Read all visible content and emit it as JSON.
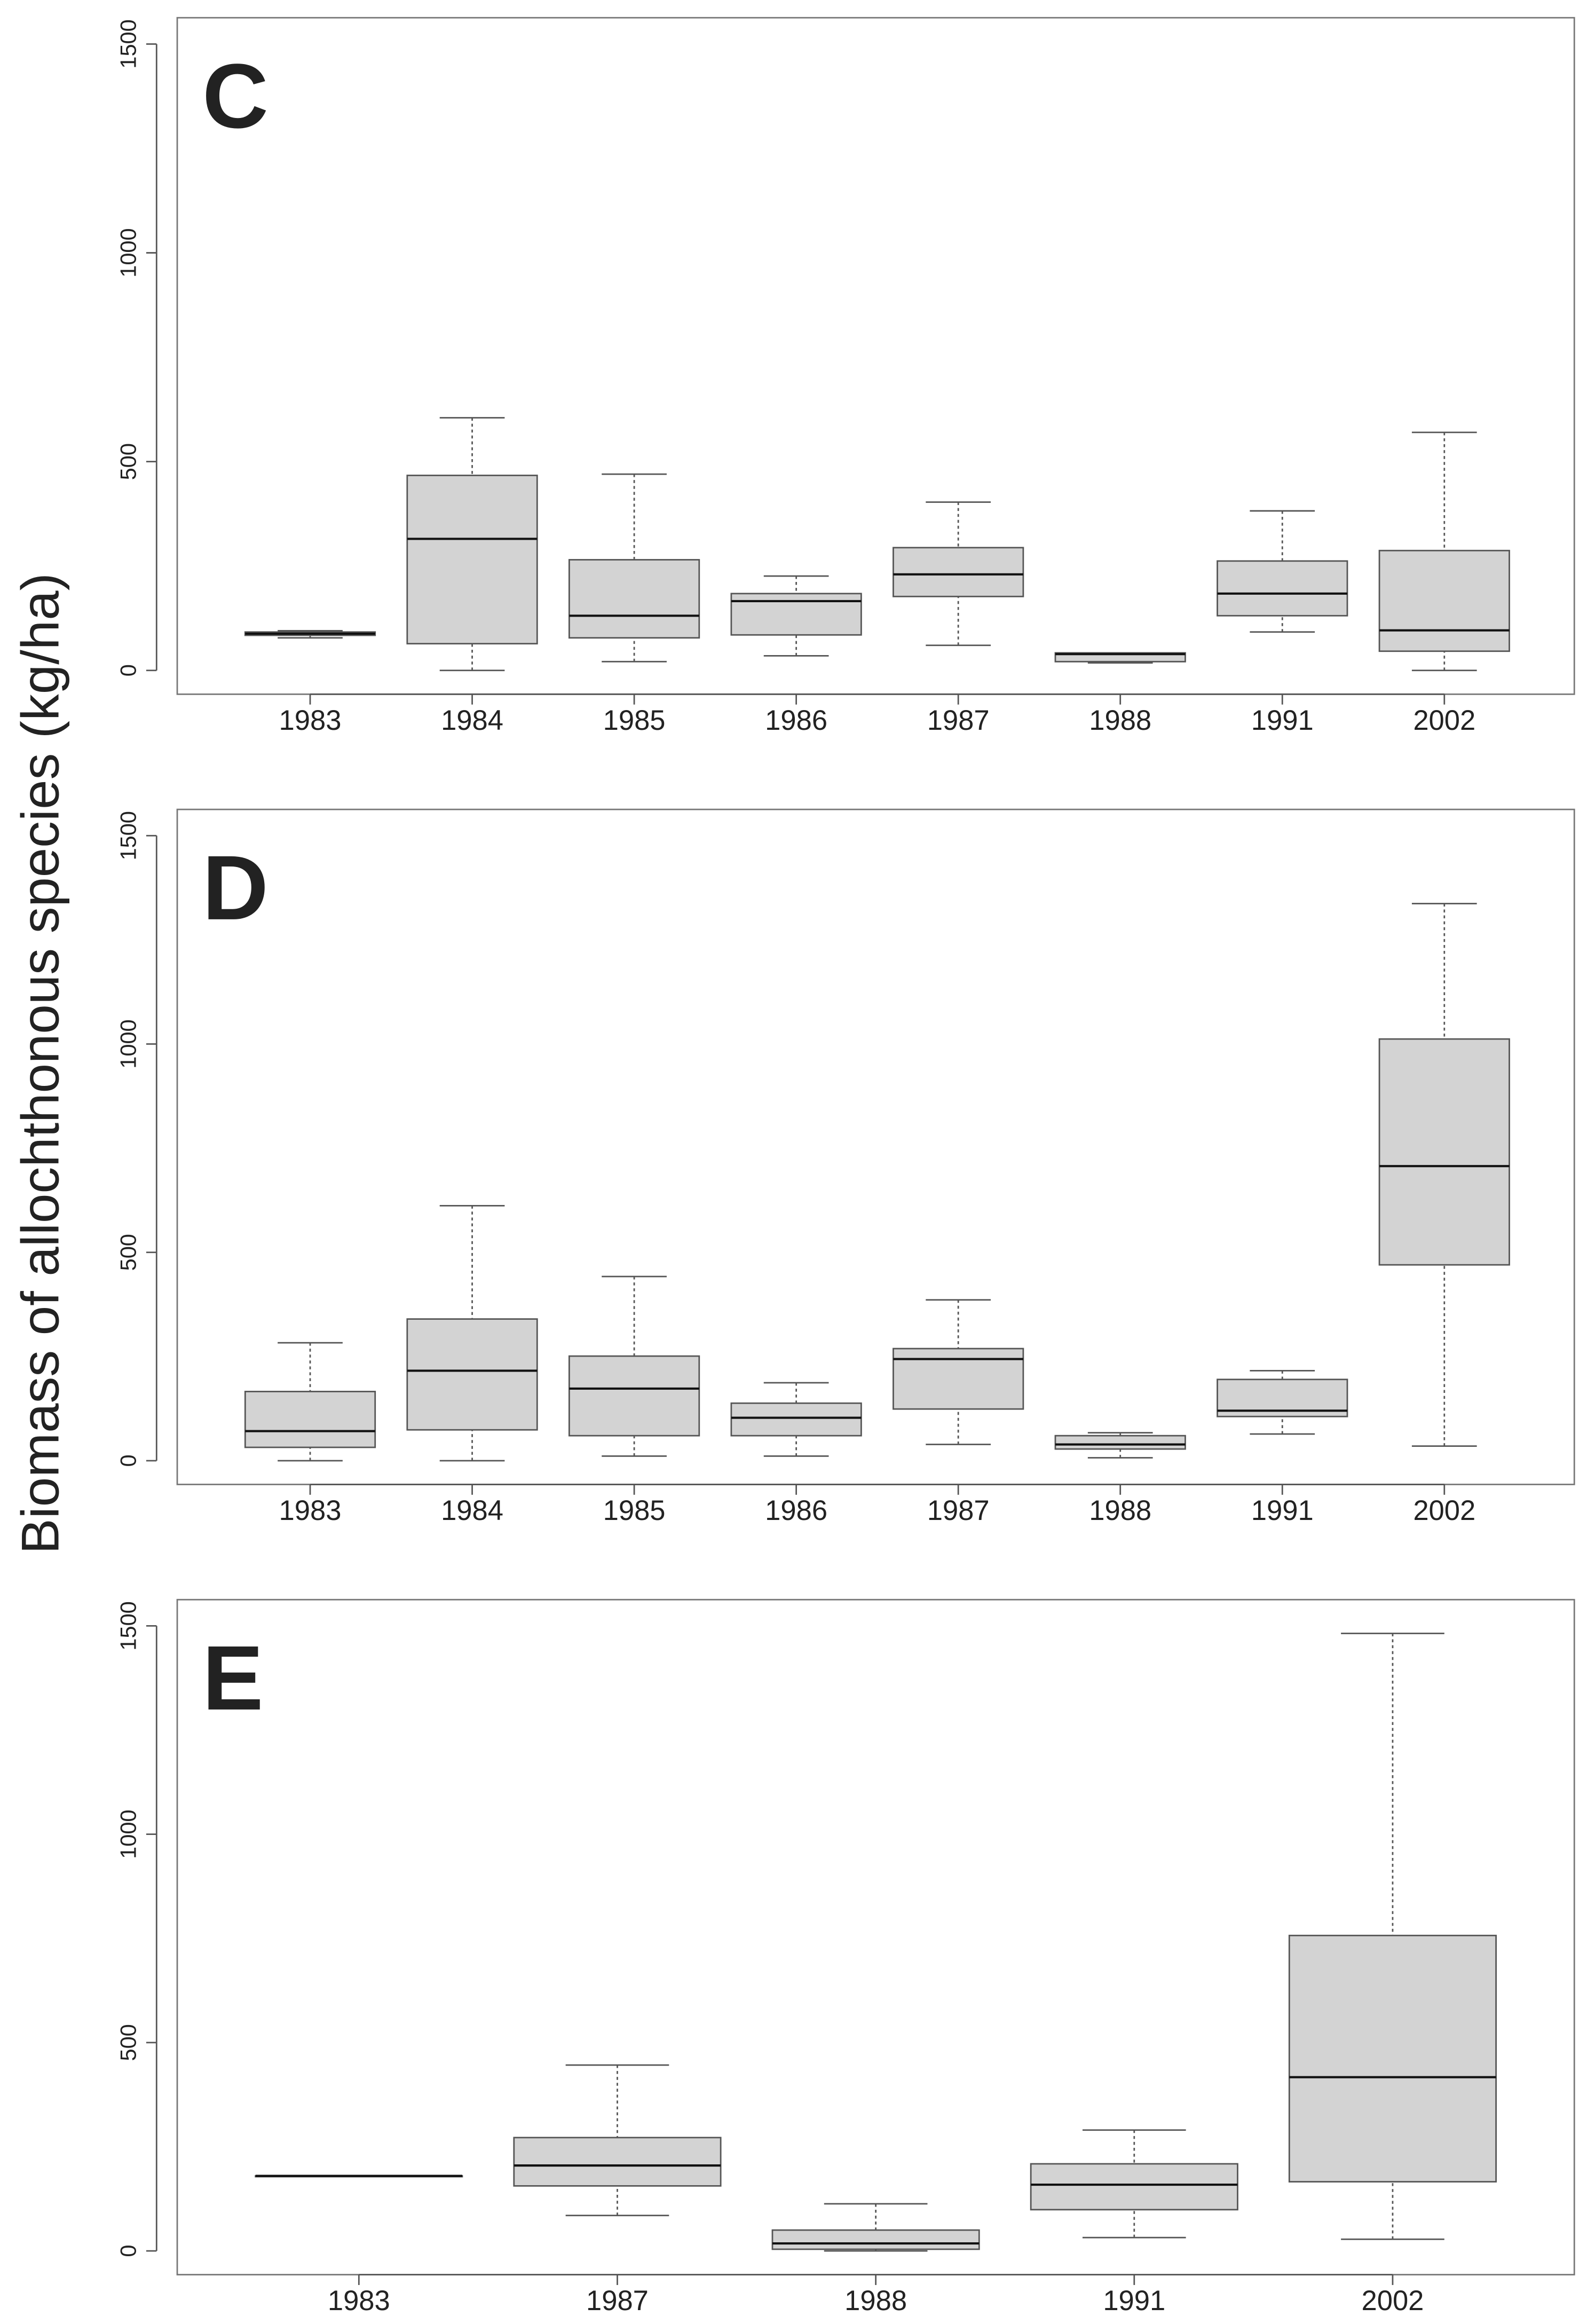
{
  "chart_data": [
    {
      "type": "box",
      "title": "C",
      "ylabel": "Biomass of allochthonous species (kg/ha)",
      "categories": [
        "1983",
        "1984",
        "1985",
        "1986",
        "1987",
        "1988",
        "1991",
        "2002"
      ],
      "min": [
        78,
        0,
        21,
        35,
        60,
        18,
        92,
        0
      ],
      "q1": [
        84,
        64,
        78,
        85,
        177,
        21,
        131,
        46
      ],
      "median": [
        88,
        315,
        131,
        166,
        230,
        39,
        184,
        96
      ],
      "q3": [
        92,
        467,
        265,
        184,
        294,
        42,
        262,
        287
      ],
      "max": [
        95,
        605,
        470,
        226,
        403,
        42,
        382,
        570
      ],
      "color": "#d3d3d3",
      "ylim": [
        -57,
        1563
      ],
      "yticks": [
        0,
        500,
        1000,
        1500
      ]
    },
    {
      "type": "box",
      "title": "D",
      "categories": [
        "1983",
        "1984",
        "1985",
        "1986",
        "1987",
        "1988",
        "1991",
        "2002"
      ],
      "min": [
        0,
        0,
        11,
        11,
        39,
        7,
        64,
        35
      ],
      "q1": [
        32,
        74,
        60,
        60,
        124,
        28,
        106,
        470
      ],
      "median": [
        71,
        216,
        173,
        103,
        244,
        39,
        120,
        707
      ],
      "q3": [
        166,
        340,
        251,
        138,
        269,
        60,
        195,
        1012
      ],
      "max": [
        283,
        612,
        442,
        187,
        386,
        67,
        216,
        1337
      ],
      "color": "#d3d3d3",
      "ylim": [
        -57,
        1563
      ],
      "yticks": [
        0,
        500,
        1000,
        1500
      ]
    },
    {
      "type": "box",
      "title": "E",
      "categories": [
        "1983",
        "1987",
        "1988",
        "1991",
        "2002"
      ],
      "min": [
        180,
        85,
        0,
        32,
        28
      ],
      "q1": [
        180,
        156,
        4,
        99,
        166
      ],
      "median": [
        180,
        205,
        18,
        159,
        417
      ],
      "q3": [
        180,
        272,
        50,
        209,
        757
      ],
      "max": [
        180,
        446,
        113,
        290,
        1482
      ],
      "color": "#d3d3d3",
      "ylim": [
        -57,
        1563
      ],
      "yticks": [
        0,
        500,
        1000,
        1500
      ]
    }
  ]
}
